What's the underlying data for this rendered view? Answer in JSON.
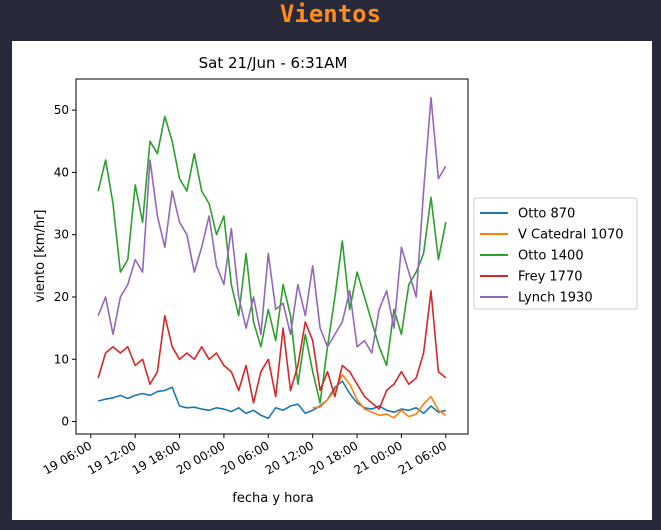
{
  "page": {
    "title": "Vientos"
  },
  "chart_data": {
    "type": "line",
    "title": "Sat 21/Jun - 6:31AM",
    "xlabel": "fecha y hora",
    "ylabel": "viento [km/hr]",
    "x_unit": "hours",
    "xlim": [
      "2025-06-19 04:00",
      "2025-06-21 09:00"
    ],
    "ylim": [
      -2,
      55
    ],
    "yticks": [
      0,
      10,
      20,
      30,
      40,
      50
    ],
    "xticks": [
      {
        "x": "2025-06-19 06:00",
        "label": "19 06:00"
      },
      {
        "x": "2025-06-19 12:00",
        "label": "19 12:00"
      },
      {
        "x": "2025-06-19 18:00",
        "label": "19 18:00"
      },
      {
        "x": "2025-06-20 00:00",
        "label": "20 00:00"
      },
      {
        "x": "2025-06-20 06:00",
        "label": "20 06:00"
      },
      {
        "x": "2025-06-20 12:00",
        "label": "20 12:00"
      },
      {
        "x": "2025-06-20 18:00",
        "label": "20 18:00"
      },
      {
        "x": "2025-06-21 00:00",
        "label": "21 00:00"
      },
      {
        "x": "2025-06-21 06:00",
        "label": "21 06:00"
      }
    ],
    "legend_position": "right-outside",
    "grid": false,
    "series": [
      {
        "name": "Otto 870",
        "color": "#1f77b4",
        "points": [
          [
            "2025-06-19 07:00",
            3.3
          ],
          [
            "2025-06-19 08:00",
            3.6
          ],
          [
            "2025-06-19 09:00",
            3.8
          ],
          [
            "2025-06-19 10:00",
            4.2
          ],
          [
            "2025-06-19 11:00",
            3.7
          ],
          [
            "2025-06-19 12:00",
            4.2
          ],
          [
            "2025-06-19 13:00",
            4.5
          ],
          [
            "2025-06-19 14:00",
            4.2
          ],
          [
            "2025-06-19 15:00",
            4.8
          ],
          [
            "2025-06-19 16:00",
            5.0
          ],
          [
            "2025-06-19 17:00",
            5.5
          ],
          [
            "2025-06-19 18:00",
            2.5
          ],
          [
            "2025-06-19 19:00",
            2.2
          ],
          [
            "2025-06-19 20:00",
            2.3
          ],
          [
            "2025-06-19 21:00",
            2.0
          ],
          [
            "2025-06-19 22:00",
            1.8
          ],
          [
            "2025-06-19 23:00",
            2.2
          ],
          [
            "2025-06-20 00:00",
            2.0
          ],
          [
            "2025-06-20 01:00",
            1.6
          ],
          [
            "2025-06-20 02:00",
            2.2
          ],
          [
            "2025-06-20 03:00",
            1.3
          ],
          [
            "2025-06-20 04:00",
            1.8
          ],
          [
            "2025-06-20 05:00",
            1.0
          ],
          [
            "2025-06-20 06:00",
            0.5
          ],
          [
            "2025-06-20 07:00",
            2.2
          ],
          [
            "2025-06-20 08:00",
            1.8
          ],
          [
            "2025-06-20 09:00",
            2.5
          ],
          [
            "2025-06-20 10:00",
            2.8
          ],
          [
            "2025-06-20 11:00",
            1.3
          ],
          [
            "2025-06-20 12:00",
            1.8
          ],
          [
            "2025-06-20 13:00",
            2.5
          ],
          [
            "2025-06-20 14:00",
            3.5
          ],
          [
            "2025-06-20 15:00",
            5.5
          ],
          [
            "2025-06-20 16:00",
            6.5
          ],
          [
            "2025-06-20 17:00",
            4.5
          ],
          [
            "2025-06-20 18:00",
            3.0
          ],
          [
            "2025-06-20 19:00",
            2.2
          ],
          [
            "2025-06-20 20:00",
            2.0
          ],
          [
            "2025-06-20 21:00",
            2.5
          ],
          [
            "2025-06-20 22:00",
            1.8
          ],
          [
            "2025-06-20 23:00",
            1.5
          ],
          [
            "2025-06-21 00:00",
            2.0
          ],
          [
            "2025-06-21 01:00",
            1.8
          ],
          [
            "2025-06-21 02:00",
            2.2
          ],
          [
            "2025-06-21 03:00",
            1.3
          ],
          [
            "2025-06-21 04:00",
            2.5
          ],
          [
            "2025-06-21 05:00",
            1.5
          ],
          [
            "2025-06-21 06:00",
            1.8
          ]
        ]
      },
      {
        "name": "V Catedral 1070",
        "color": "#ff7f0e",
        "points": [
          [
            "2025-06-20 12:00",
            2.2
          ],
          [
            "2025-06-20 13:00",
            2.3
          ],
          [
            "2025-06-20 14:00",
            3.5
          ],
          [
            "2025-06-20 15:00",
            5.0
          ],
          [
            "2025-06-20 16:00",
            7.5
          ],
          [
            "2025-06-20 17:00",
            6.0
          ],
          [
            "2025-06-20 18:00",
            3.5
          ],
          [
            "2025-06-20 19:00",
            2.0
          ],
          [
            "2025-06-20 20:00",
            1.5
          ],
          [
            "2025-06-20 21:00",
            1.0
          ],
          [
            "2025-06-20 22:00",
            1.2
          ],
          [
            "2025-06-20 23:00",
            0.6
          ],
          [
            "2025-06-21 00:00",
            1.8
          ],
          [
            "2025-06-21 01:00",
            0.8
          ],
          [
            "2025-06-21 02:00",
            1.2
          ],
          [
            "2025-06-21 03:00",
            2.8
          ],
          [
            "2025-06-21 04:00",
            4.0
          ],
          [
            "2025-06-21 05:00",
            1.8
          ],
          [
            "2025-06-21 06:00",
            1.0
          ]
        ]
      },
      {
        "name": "Otto 1400",
        "color": "#2ca02c",
        "points": [
          [
            "2025-06-19 07:00",
            37
          ],
          [
            "2025-06-19 08:00",
            42
          ],
          [
            "2025-06-19 09:00",
            35
          ],
          [
            "2025-06-19 10:00",
            24
          ],
          [
            "2025-06-19 11:00",
            26
          ],
          [
            "2025-06-19 12:00",
            38
          ],
          [
            "2025-06-19 13:00",
            32
          ],
          [
            "2025-06-19 14:00",
            45
          ],
          [
            "2025-06-19 15:00",
            43
          ],
          [
            "2025-06-19 16:00",
            49
          ],
          [
            "2025-06-19 17:00",
            45
          ],
          [
            "2025-06-19 18:00",
            39
          ],
          [
            "2025-06-19 19:00",
            37
          ],
          [
            "2025-06-19 20:00",
            43
          ],
          [
            "2025-06-19 21:00",
            37
          ],
          [
            "2025-06-19 22:00",
            35
          ],
          [
            "2025-06-19 23:00",
            30
          ],
          [
            "2025-06-20 00:00",
            33
          ],
          [
            "2025-06-20 01:00",
            22
          ],
          [
            "2025-06-20 02:00",
            17
          ],
          [
            "2025-06-20 03:00",
            27
          ],
          [
            "2025-06-20 04:00",
            16
          ],
          [
            "2025-06-20 05:00",
            12
          ],
          [
            "2025-06-20 06:00",
            18
          ],
          [
            "2025-06-20 07:00",
            13
          ],
          [
            "2025-06-20 08:00",
            22
          ],
          [
            "2025-06-20 09:00",
            17
          ],
          [
            "2025-06-20 10:00",
            6
          ],
          [
            "2025-06-20 11:00",
            14
          ],
          [
            "2025-06-20 12:00",
            8
          ],
          [
            "2025-06-20 13:00",
            3
          ],
          [
            "2025-06-20 14:00",
            12
          ],
          [
            "2025-06-20 15:00",
            20
          ],
          [
            "2025-06-20 16:00",
            29
          ],
          [
            "2025-06-20 17:00",
            18
          ],
          [
            "2025-06-20 18:00",
            24
          ],
          [
            "2025-06-20 19:00",
            20
          ],
          [
            "2025-06-20 20:00",
            16
          ],
          [
            "2025-06-20 21:00",
            12
          ],
          [
            "2025-06-20 22:00",
            9
          ],
          [
            "2025-06-20 23:00",
            18
          ],
          [
            "2025-06-21 00:00",
            14
          ],
          [
            "2025-06-21 01:00",
            22
          ],
          [
            "2025-06-21 02:00",
            24
          ],
          [
            "2025-06-21 03:00",
            27
          ],
          [
            "2025-06-21 04:00",
            36
          ],
          [
            "2025-06-21 05:00",
            26
          ],
          [
            "2025-06-21 06:00",
            32
          ]
        ]
      },
      {
        "name": "Frey 1770",
        "color": "#d62728",
        "points": [
          [
            "2025-06-19 07:00",
            7
          ],
          [
            "2025-06-19 08:00",
            11
          ],
          [
            "2025-06-19 09:00",
            12
          ],
          [
            "2025-06-19 10:00",
            11
          ],
          [
            "2025-06-19 11:00",
            12
          ],
          [
            "2025-06-19 12:00",
            9
          ],
          [
            "2025-06-19 13:00",
            10
          ],
          [
            "2025-06-19 14:00",
            6
          ],
          [
            "2025-06-19 15:00",
            8
          ],
          [
            "2025-06-19 16:00",
            17
          ],
          [
            "2025-06-19 17:00",
            12
          ],
          [
            "2025-06-19 18:00",
            10
          ],
          [
            "2025-06-19 19:00",
            11
          ],
          [
            "2025-06-19 20:00",
            10
          ],
          [
            "2025-06-19 21:00",
            12
          ],
          [
            "2025-06-19 22:00",
            10
          ],
          [
            "2025-06-19 23:00",
            11
          ],
          [
            "2025-06-20 00:00",
            9
          ],
          [
            "2025-06-20 01:00",
            8
          ],
          [
            "2025-06-20 02:00",
            5
          ],
          [
            "2025-06-20 03:00",
            9
          ],
          [
            "2025-06-20 04:00",
            3
          ],
          [
            "2025-06-20 05:00",
            8
          ],
          [
            "2025-06-20 06:00",
            10
          ],
          [
            "2025-06-20 07:00",
            4
          ],
          [
            "2025-06-20 08:00",
            15
          ],
          [
            "2025-06-20 09:00",
            5
          ],
          [
            "2025-06-20 10:00",
            9
          ],
          [
            "2025-06-20 11:00",
            16
          ],
          [
            "2025-06-20 12:00",
            13
          ],
          [
            "2025-06-20 13:00",
            5
          ],
          [
            "2025-06-20 14:00",
            8
          ],
          [
            "2025-06-20 15:00",
            4
          ],
          [
            "2025-06-20 16:00",
            9
          ],
          [
            "2025-06-20 17:00",
            8
          ],
          [
            "2025-06-20 18:00",
            6
          ],
          [
            "2025-06-20 19:00",
            4
          ],
          [
            "2025-06-20 20:00",
            3
          ],
          [
            "2025-06-20 21:00",
            2
          ],
          [
            "2025-06-20 22:00",
            5
          ],
          [
            "2025-06-20 23:00",
            6
          ],
          [
            "2025-06-21 00:00",
            8
          ],
          [
            "2025-06-21 01:00",
            6
          ],
          [
            "2025-06-21 02:00",
            7
          ],
          [
            "2025-06-21 03:00",
            11
          ],
          [
            "2025-06-21 04:00",
            21
          ],
          [
            "2025-06-21 05:00",
            8
          ],
          [
            "2025-06-21 06:00",
            7
          ]
        ]
      },
      {
        "name": "Lynch 1930",
        "color": "#9467bd",
        "points": [
          [
            "2025-06-19 07:00",
            17
          ],
          [
            "2025-06-19 08:00",
            20
          ],
          [
            "2025-06-19 09:00",
            14
          ],
          [
            "2025-06-19 10:00",
            20
          ],
          [
            "2025-06-19 11:00",
            22
          ],
          [
            "2025-06-19 12:00",
            26
          ],
          [
            "2025-06-19 13:00",
            24
          ],
          [
            "2025-06-19 14:00",
            42
          ],
          [
            "2025-06-19 15:00",
            33
          ],
          [
            "2025-06-19 16:00",
            28
          ],
          [
            "2025-06-19 17:00",
            37
          ],
          [
            "2025-06-19 18:00",
            32
          ],
          [
            "2025-06-19 19:00",
            30
          ],
          [
            "2025-06-19 20:00",
            24
          ],
          [
            "2025-06-19 21:00",
            28
          ],
          [
            "2025-06-19 22:00",
            33
          ],
          [
            "2025-06-19 23:00",
            25
          ],
          [
            "2025-06-20 00:00",
            22
          ],
          [
            "2025-06-20 01:00",
            31
          ],
          [
            "2025-06-20 02:00",
            20
          ],
          [
            "2025-06-20 03:00",
            15
          ],
          [
            "2025-06-20 04:00",
            20
          ],
          [
            "2025-06-20 05:00",
            14
          ],
          [
            "2025-06-20 06:00",
            27
          ],
          [
            "2025-06-20 07:00",
            18
          ],
          [
            "2025-06-20 08:00",
            19
          ],
          [
            "2025-06-20 09:00",
            14
          ],
          [
            "2025-06-20 10:00",
            22
          ],
          [
            "2025-06-20 11:00",
            17
          ],
          [
            "2025-06-20 12:00",
            25
          ],
          [
            "2025-06-20 13:00",
            15
          ],
          [
            "2025-06-20 14:00",
            12
          ],
          [
            "2025-06-20 15:00",
            14
          ],
          [
            "2025-06-20 16:00",
            16
          ],
          [
            "2025-06-20 17:00",
            21
          ],
          [
            "2025-06-20 18:00",
            12
          ],
          [
            "2025-06-20 19:00",
            13
          ],
          [
            "2025-06-20 20:00",
            11
          ],
          [
            "2025-06-20 21:00",
            18
          ],
          [
            "2025-06-20 22:00",
            21
          ],
          [
            "2025-06-20 23:00",
            15
          ],
          [
            "2025-06-21 00:00",
            28
          ],
          [
            "2025-06-21 01:00",
            24
          ],
          [
            "2025-06-21 02:00",
            20
          ],
          [
            "2025-06-21 03:00",
            37
          ],
          [
            "2025-06-21 04:00",
            52
          ],
          [
            "2025-06-21 05:00",
            39
          ],
          [
            "2025-06-21 06:00",
            41
          ]
        ]
      }
    ]
  }
}
